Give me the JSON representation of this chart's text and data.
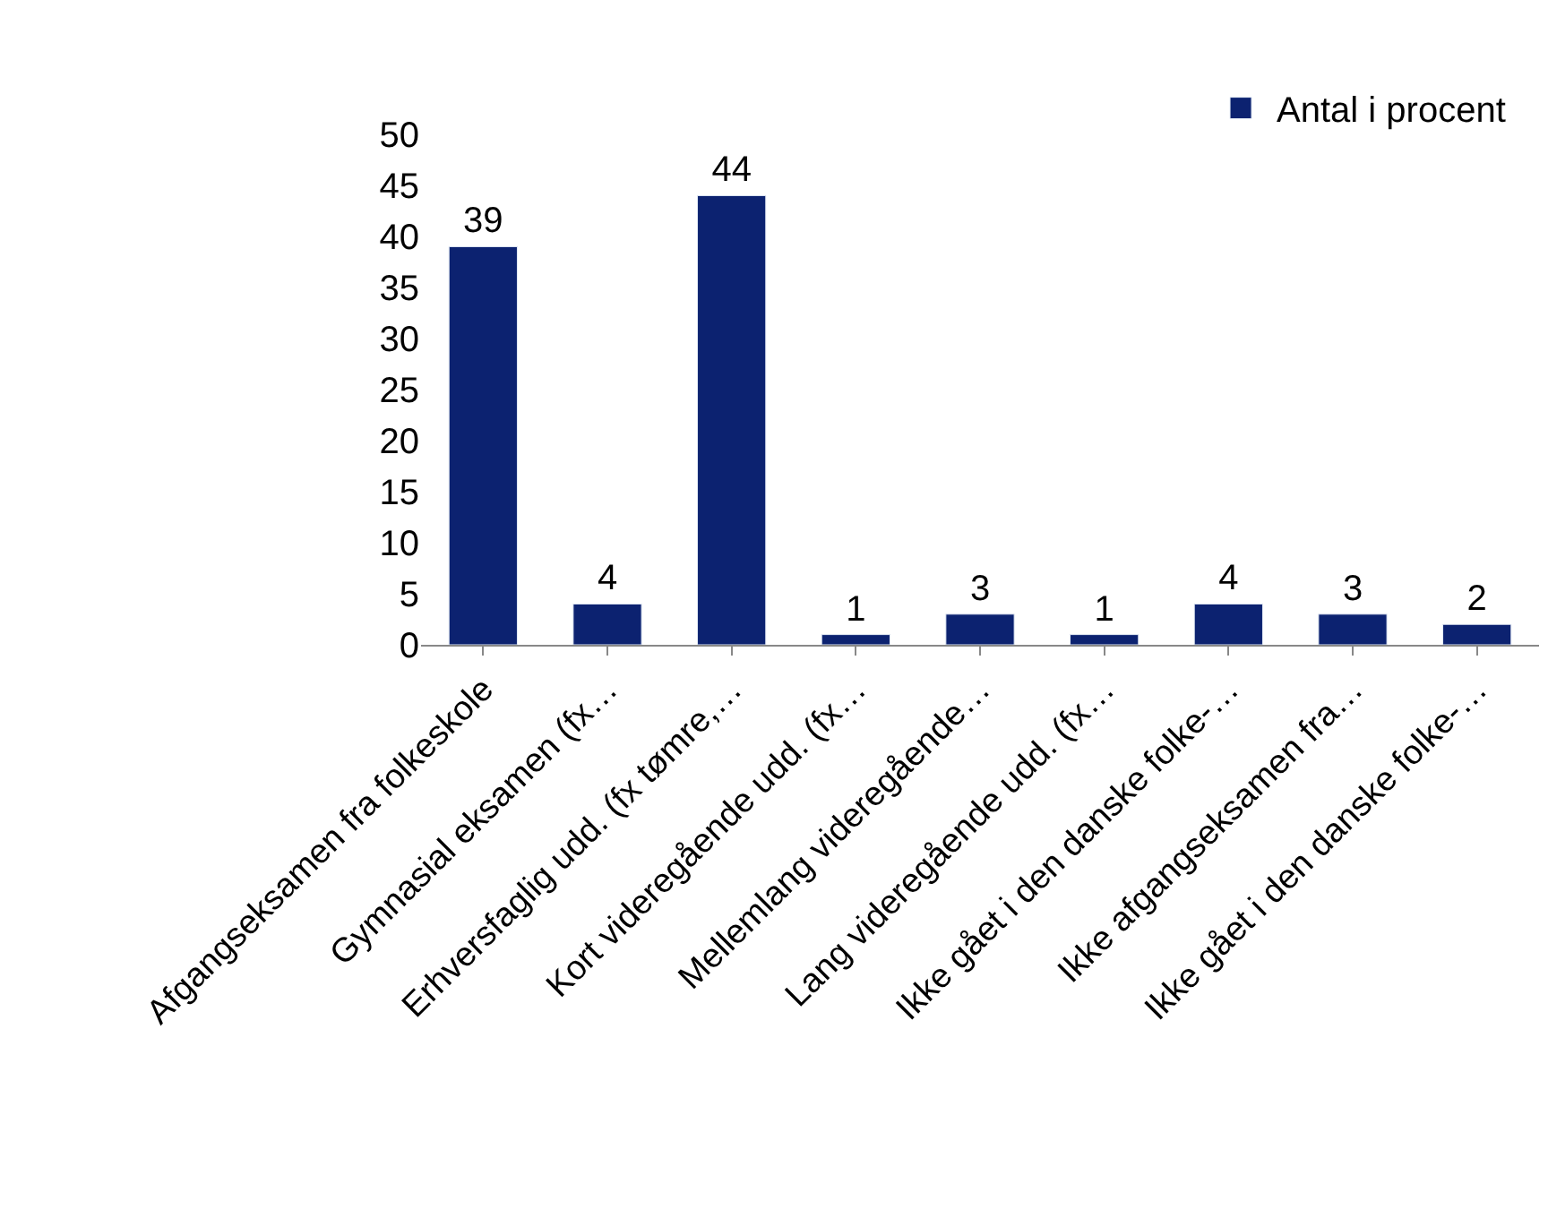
{
  "chart_data": {
    "type": "bar",
    "categories": [
      "Afgangseksamen fra folkeskole",
      "Gymnasial eksamen (fx…",
      "Erhversfaglig udd. (fx tømre,…",
      "Kort videregående udd. (fx…",
      "Mellemlang videregående…",
      "Lang videregående udd. (fx…",
      "Ikke gået i den danske folke-…",
      "Ikke afgangseksamen fra…",
      "Ikke gået i den danske folke-…"
    ],
    "series": [
      {
        "name": "Antal i procent",
        "color": "#0c2270",
        "values": [
          39,
          4,
          44,
          1,
          3,
          1,
          4,
          3,
          2
        ]
      }
    ],
    "ylim": [
      0,
      50
    ],
    "yticks": [
      0,
      5,
      10,
      15,
      20,
      25,
      30,
      35,
      40,
      45,
      50
    ],
    "data_labels": true,
    "legend": "top right"
  }
}
